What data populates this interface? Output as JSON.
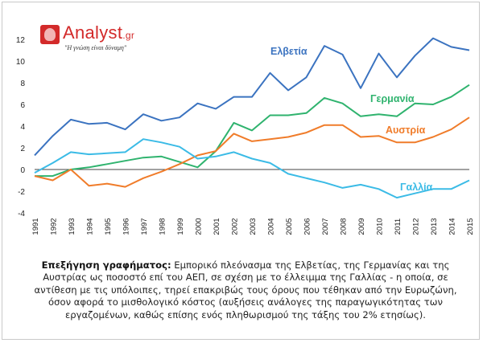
{
  "logo": {
    "brand": "Analyst",
    "brand_suffix": ".gr",
    "tagline": "\"Η γνώση είναι δύναμη\""
  },
  "caption": {
    "title": "Επεξήγηση γραφήματος:",
    "text": "Εμπορικό πλεόνασμα της Ελβετίας, της Γερμανίας και της Αυστρίας ως ποσοστό επί του ΑΕΠ, σε σχέση με το έλλειμμα της Γαλλίας - η οποία, σε αντίθεση με τις υπόλοιπες, τηρεί επακριβώς τους όρους που τέθηκαν από την Ευρωζώνη, όσον αφορά το μισθολογικό κόστος (αυξήσεις ανάλογες της παραγωγικότητας των εργαζομένων, καθώς επίσης ενός πληθωρισμού της τάξης του 2% ετησίως)."
  },
  "chart_data": {
    "type": "line",
    "x": [
      1991,
      1992,
      1993,
      1994,
      1995,
      1996,
      1997,
      1998,
      1999,
      2000,
      2001,
      2002,
      2003,
      2004,
      2005,
      2006,
      2007,
      2008,
      2009,
      2010,
      2011,
      2012,
      2013,
      2014,
      2015
    ],
    "ylim": [
      -4,
      12
    ],
    "yticks": [
      -4,
      -2,
      0,
      2,
      4,
      6,
      8,
      10,
      12
    ],
    "grid": false,
    "zero_line": true,
    "series": [
      {
        "name": "Ελβετία",
        "color": "#3b73c0",
        "values": [
          1.3,
          3.1,
          4.6,
          4.2,
          4.3,
          3.7,
          5.1,
          4.5,
          4.8,
          6.1,
          5.6,
          6.7,
          6.7,
          8.9,
          7.3,
          8.5,
          11.4,
          10.6,
          7.5,
          10.7,
          8.5,
          10.5,
          12.1,
          11.3,
          11.0
        ]
      },
      {
        "name": "Γερμανία",
        "color": "#2fb36e",
        "values": [
          -0.6,
          -0.6,
          0.0,
          0.2,
          0.5,
          0.8,
          1.1,
          1.2,
          0.7,
          0.2,
          1.7,
          4.3,
          3.6,
          5.0,
          5.0,
          5.2,
          6.6,
          6.1,
          4.9,
          5.1,
          4.9,
          6.1,
          6.0,
          6.7,
          7.8
        ]
      },
      {
        "name": "Αυστρία",
        "color": "#f07c2a",
        "values": [
          -0.6,
          -1.0,
          0.0,
          -1.5,
          -1.3,
          -1.6,
          -0.8,
          -0.2,
          0.5,
          1.3,
          1.7,
          3.3,
          2.6,
          2.8,
          3.0,
          3.4,
          4.1,
          4.1,
          3.0,
          3.1,
          2.5,
          2.5,
          3.0,
          3.7,
          4.8
        ]
      },
      {
        "name": "Γαλλία",
        "color": "#3bbbe6",
        "values": [
          -0.3,
          0.6,
          1.6,
          1.4,
          1.5,
          1.6,
          2.8,
          2.5,
          2.1,
          1.0,
          1.2,
          1.6,
          1.0,
          0.6,
          -0.4,
          -0.8,
          -1.2,
          -1.7,
          -1.4,
          -1.8,
          -2.6,
          -2.2,
          -1.8,
          -1.8,
          -1.0
        ]
      }
    ],
    "labels": [
      {
        "series": "Ελβετία",
        "text": "Ελβετία"
      },
      {
        "series": "Γερμανία",
        "text": "Γερμανία"
      },
      {
        "series": "Αυστρία",
        "text": "Αυστρία"
      },
      {
        "series": "Γαλλία",
        "text": "Γαλλία"
      }
    ]
  }
}
